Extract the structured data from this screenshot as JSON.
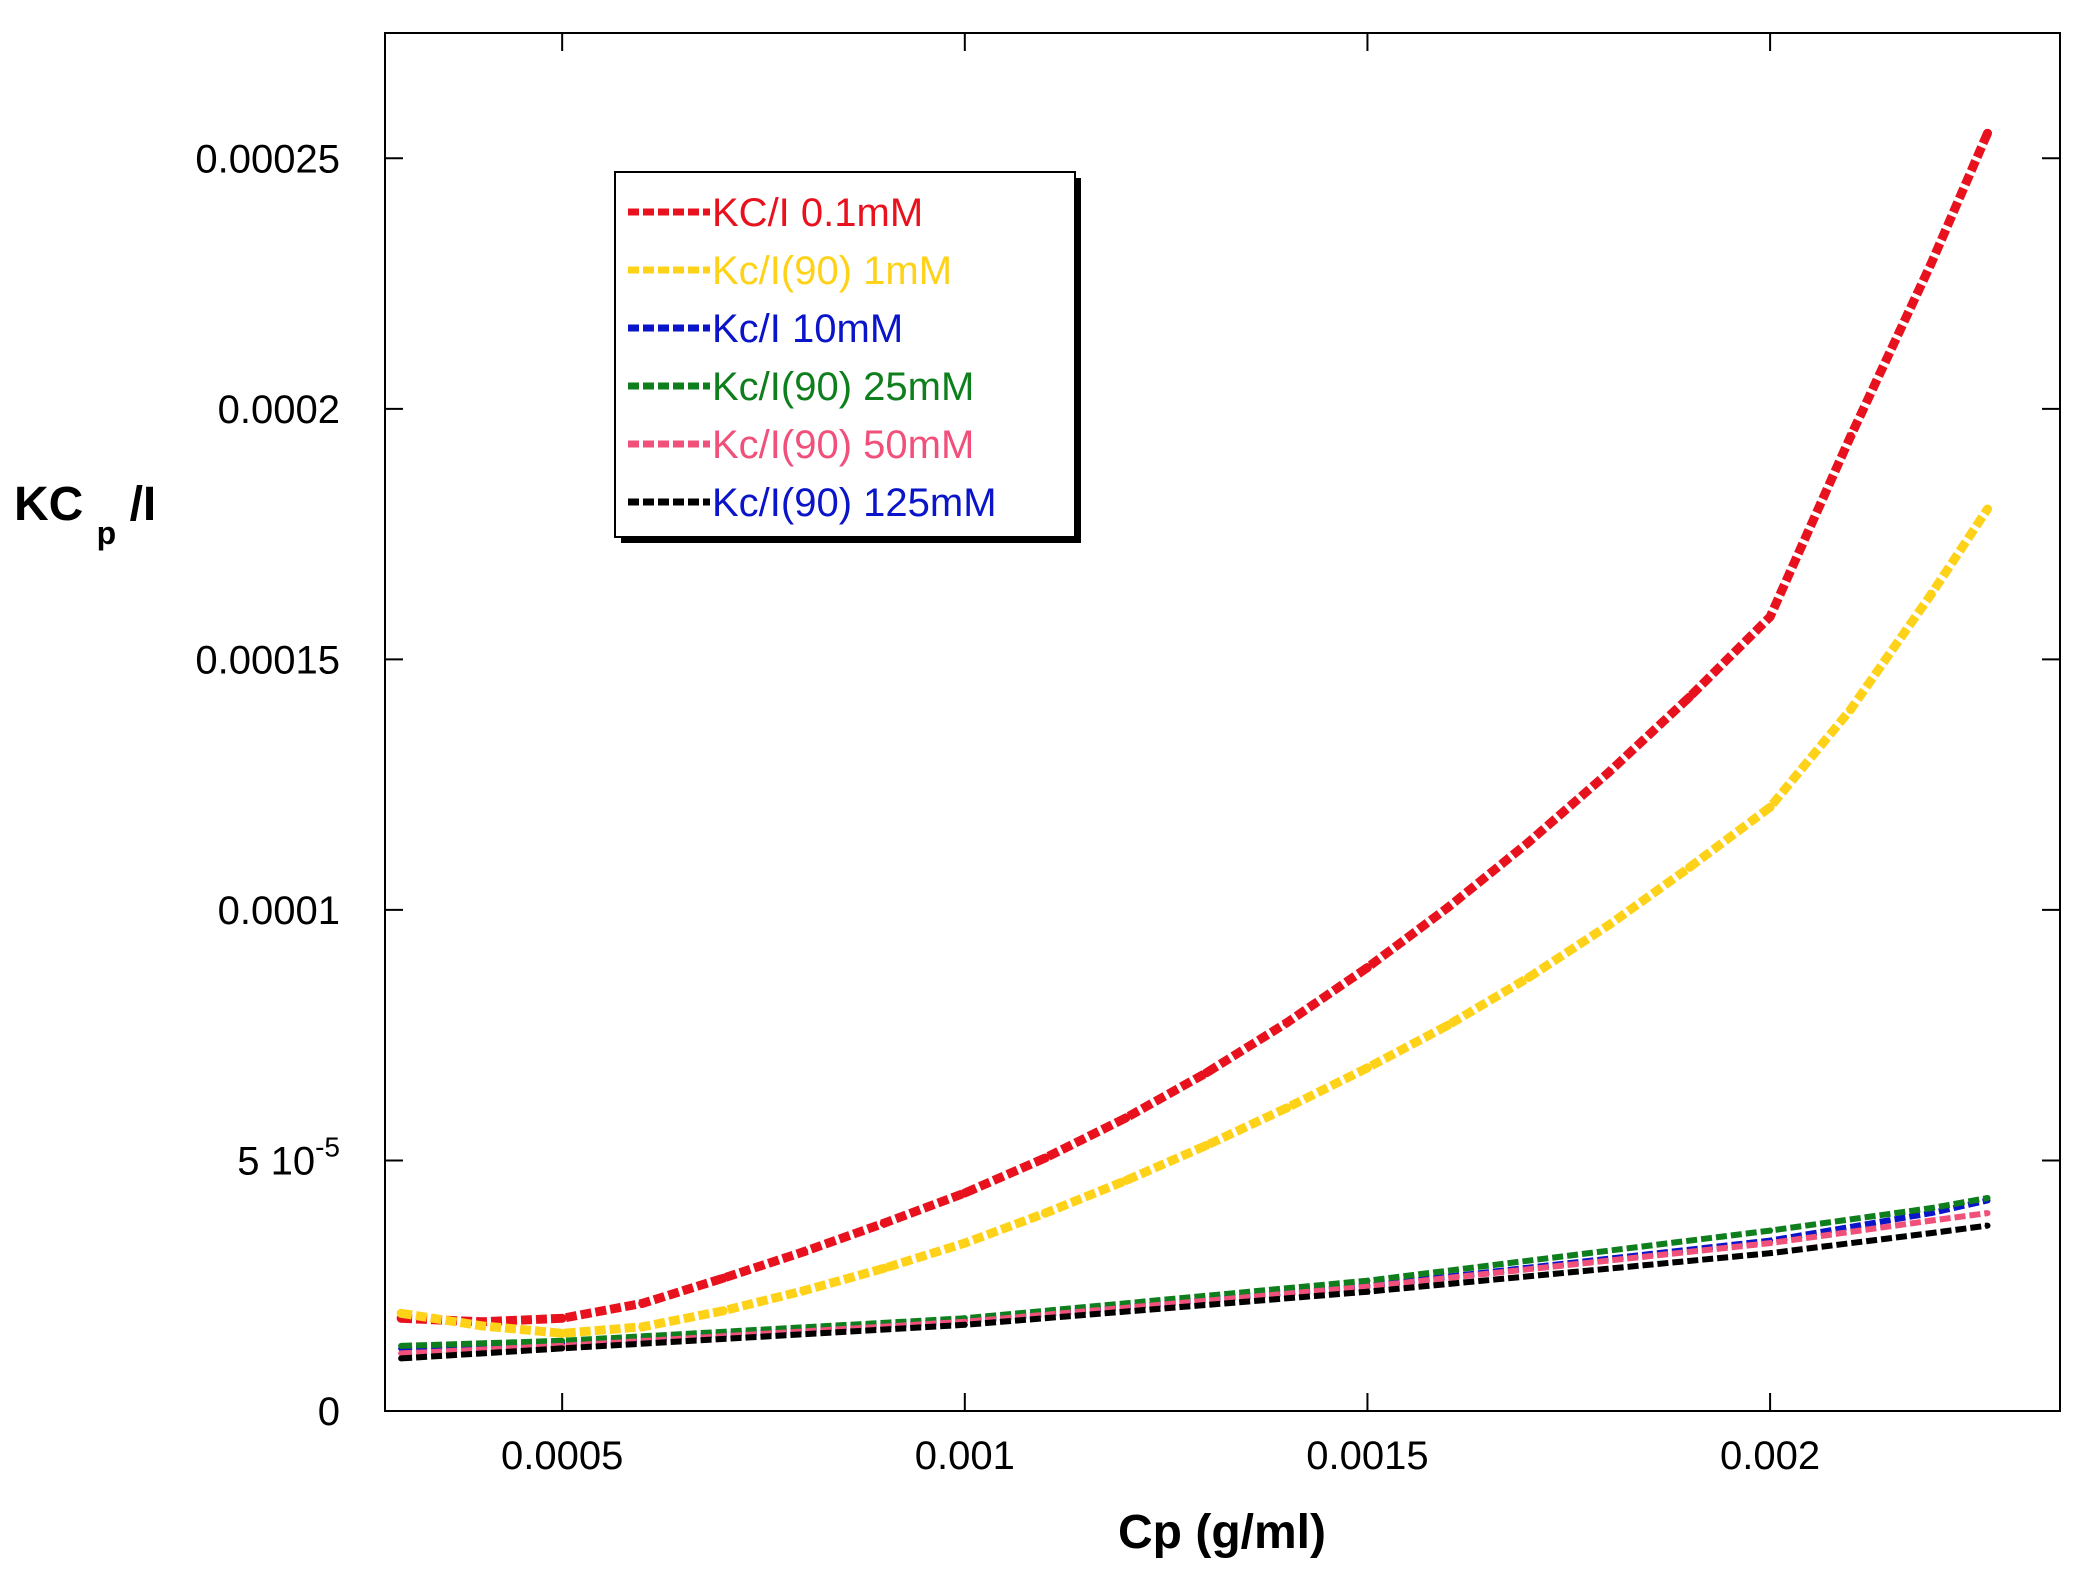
{
  "chart_data": {
    "type": "line",
    "title": "",
    "xlabel": "Cp (g/ml)",
    "ylabel": {
      "main": "KC",
      "sub": "p",
      "tail": "/I"
    },
    "xlim": [
      0.00028,
      0.00236
    ],
    "ylim": [
      0,
      0.000275
    ],
    "x_ticks": [
      {
        "value": 0.0005,
        "label": "0.0005"
      },
      {
        "value": 0.001,
        "label": "0.001"
      },
      {
        "value": 0.0015,
        "label": "0.0015"
      },
      {
        "value": 0.002,
        "label": "0.002"
      }
    ],
    "y_ticks": [
      {
        "value": 0,
        "label": "0",
        "sup": ""
      },
      {
        "value": 5e-05,
        "label": "5 10",
        "sup": "-5"
      },
      {
        "value": 0.0001,
        "label": "0.0001",
        "sup": ""
      },
      {
        "value": 0.00015,
        "label": "0.00015",
        "sup": ""
      },
      {
        "value": 0.0002,
        "label": "0.0002",
        "sup": ""
      },
      {
        "value": 0.00025,
        "label": "0.00025",
        "sup": ""
      }
    ],
    "grid": false,
    "legend_position": "upper-left",
    "series": [
      {
        "name": "KC/I 0.1mM",
        "color": "#e8121e",
        "label_color": "#e8121e",
        "x": [
          0.0003,
          0.0004,
          0.0005,
          0.0006,
          0.0007,
          0.0008,
          0.0009,
          0.001,
          0.0011,
          0.0012,
          0.0013,
          0.0014,
          0.0015,
          0.0016,
          0.0017,
          0.0018,
          0.0019,
          0.002,
          0.0021,
          0.0022,
          0.00227
        ],
        "y": [
          1.85e-05,
          1.78e-05,
          1.85e-05,
          2.15e-05,
          2.65e-05,
          3.18e-05,
          3.75e-05,
          4.35e-05,
          5.05e-05,
          5.85e-05,
          6.75e-05,
          7.75e-05,
          8.85e-05,
          0.0001005,
          0.0001135,
          0.0001275,
          0.0001425,
          0.0001585,
          0.0001945,
          0.000229,
          0.000255
        ]
      },
      {
        "name": "Kc/I(90) 1mM",
        "color": "#ffd21a",
        "label_color": "#ffd21a",
        "x": [
          0.0003,
          0.0004,
          0.0005,
          0.0006,
          0.0007,
          0.0008,
          0.0009,
          0.001,
          0.0011,
          0.0012,
          0.0013,
          0.0014,
          0.0015,
          0.0016,
          0.0017,
          0.0018,
          0.0019,
          0.002,
          0.0021,
          0.0022,
          0.00227
        ],
        "y": [
          1.95e-05,
          1.7e-05,
          1.55e-05,
          1.68e-05,
          2e-05,
          2.4e-05,
          2.85e-05,
          3.35e-05,
          3.95e-05,
          4.6e-05,
          5.3e-05,
          6.05e-05,
          6.85e-05,
          7.7e-05,
          8.65e-05,
          9.7e-05,
          0.0001085,
          0.0001205,
          0.00014,
          0.000163,
          0.00018
        ]
      },
      {
        "name": "Kc/I 10mM",
        "color": "#0a14c8",
        "label_color": "#0a14c8",
        "x": [
          0.0003,
          0.0005,
          0.001,
          0.0015,
          0.002,
          0.0022,
          0.00227
        ],
        "y": [
          1.25e-05,
          1.35e-05,
          1.8e-05,
          2.5e-05,
          3.4e-05,
          3.95e-05,
          4.2e-05
        ]
      },
      {
        "name": "Kc/I(90) 25mM",
        "color": "#0f7f1e",
        "label_color": "#0f7f1e",
        "x": [
          0.0003,
          0.0005,
          0.001,
          0.0015,
          0.002,
          0.0022,
          0.00227
        ],
        "y": [
          1.3e-05,
          1.4e-05,
          1.85e-05,
          2.6e-05,
          3.6e-05,
          4.05e-05,
          4.25e-05
        ]
      },
      {
        "name": "Kc/I(90) 50mM",
        "color": "#f0507a",
        "label_color": "#f0507a",
        "x": [
          0.0003,
          0.0005,
          0.001,
          0.0015,
          0.002,
          0.0022,
          0.00227
        ],
        "y": [
          1.15e-05,
          1.3e-05,
          1.78e-05,
          2.48e-05,
          3.35e-05,
          3.8e-05,
          3.95e-05
        ]
      },
      {
        "name": "Kc/I(90) 125mM",
        "color": "#000000",
        "label_color": "#0a14c8",
        "x": [
          0.0003,
          0.0005,
          0.001,
          0.0015,
          0.002,
          0.0022,
          0.00227
        ],
        "y": [
          1.05e-05,
          1.25e-05,
          1.72e-05,
          2.38e-05,
          3.15e-05,
          3.55e-05,
          3.7e-05
        ]
      }
    ]
  }
}
